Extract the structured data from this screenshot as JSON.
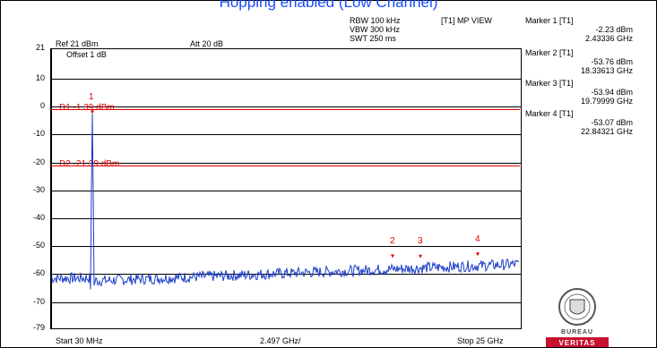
{
  "title": "Hopping enabled (Low Channel)",
  "header": {
    "ref": "Ref 21 dBm",
    "att": "Att  20 dB",
    "offset": "Offset 1 dB",
    "rbw": "RBW 100 kHz",
    "vbw": "VBW 300 kHz",
    "swt": "SWT 250 ms",
    "view": "[T1] MP VIEW"
  },
  "markers": [
    {
      "label": "Marker 1 [T1]",
      "level": "-2.23 dBm",
      "freq": "2.43336 GHz"
    },
    {
      "label": "Marker 2 [T1]",
      "level": "-53.76 dBm",
      "freq": "18.33613 GHz"
    },
    {
      "label": "Marker 3 [T1]",
      "level": "-53.94 dBm",
      "freq": "19.79999 GHz"
    },
    {
      "label": "Marker 4 [T1]",
      "level": "-53.07 dBm",
      "freq": "22.84321 GHz"
    }
  ],
  "marker_numbers": [
    "1",
    "2",
    "3",
    "4"
  ],
  "display_lines": {
    "d1": "D1 -1.39 dBm",
    "d2": "D2 -21.39 dBm"
  },
  "y_ticks": [
    "21",
    "10",
    "0",
    "-10",
    "-20",
    "-30",
    "-40",
    "-50",
    "-60",
    "-70",
    "-79"
  ],
  "x_labels": {
    "start": "Start 30 MHz",
    "div": "2.497 GHz/",
    "stop": "Stop 25 GHz"
  },
  "logo_text": "BUREAU VERITAS",
  "colors": {
    "trace": "#1a3cc8",
    "line": "#e00000",
    "title": "#1a4cff"
  }
}
